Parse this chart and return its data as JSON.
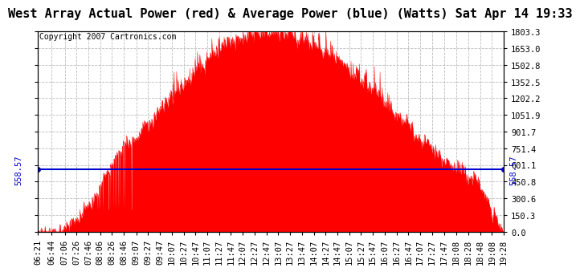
{
  "title": "West Array Actual Power (red) & Average Power (blue) (Watts) Sat Apr 14 19:33",
  "copyright": "Copyright 2007 Cartronics.com",
  "avg_power": 558.57,
  "ymax": 1803.3,
  "ymin": 0.0,
  "yticks": [
    0.0,
    150.3,
    300.6,
    450.8,
    601.1,
    751.4,
    901.7,
    1051.9,
    1202.2,
    1352.5,
    1502.8,
    1653.0,
    1803.3
  ],
  "xtick_labels": [
    "06:21",
    "06:44",
    "07:06",
    "07:26",
    "07:46",
    "08:06",
    "08:26",
    "08:46",
    "09:07",
    "09:27",
    "09:47",
    "10:07",
    "10:27",
    "10:47",
    "11:07",
    "11:27",
    "11:47",
    "12:07",
    "12:27",
    "12:47",
    "13:07",
    "13:27",
    "13:47",
    "14:07",
    "14:27",
    "14:47",
    "15:07",
    "15:27",
    "15:47",
    "16:07",
    "16:27",
    "16:47",
    "17:07",
    "17:27",
    "17:47",
    "18:08",
    "18:28",
    "18:48",
    "19:08",
    "19:28"
  ],
  "bg_color": "#ffffff",
  "plot_bg_color": "#ffffff",
  "grid_color": "#bbbbbb",
  "fill_color": "#ff0000",
  "line_color": "#0000cc",
  "tick_fontsize": 7.5,
  "copyright_fontsize": 7,
  "title_fontsize": 11
}
